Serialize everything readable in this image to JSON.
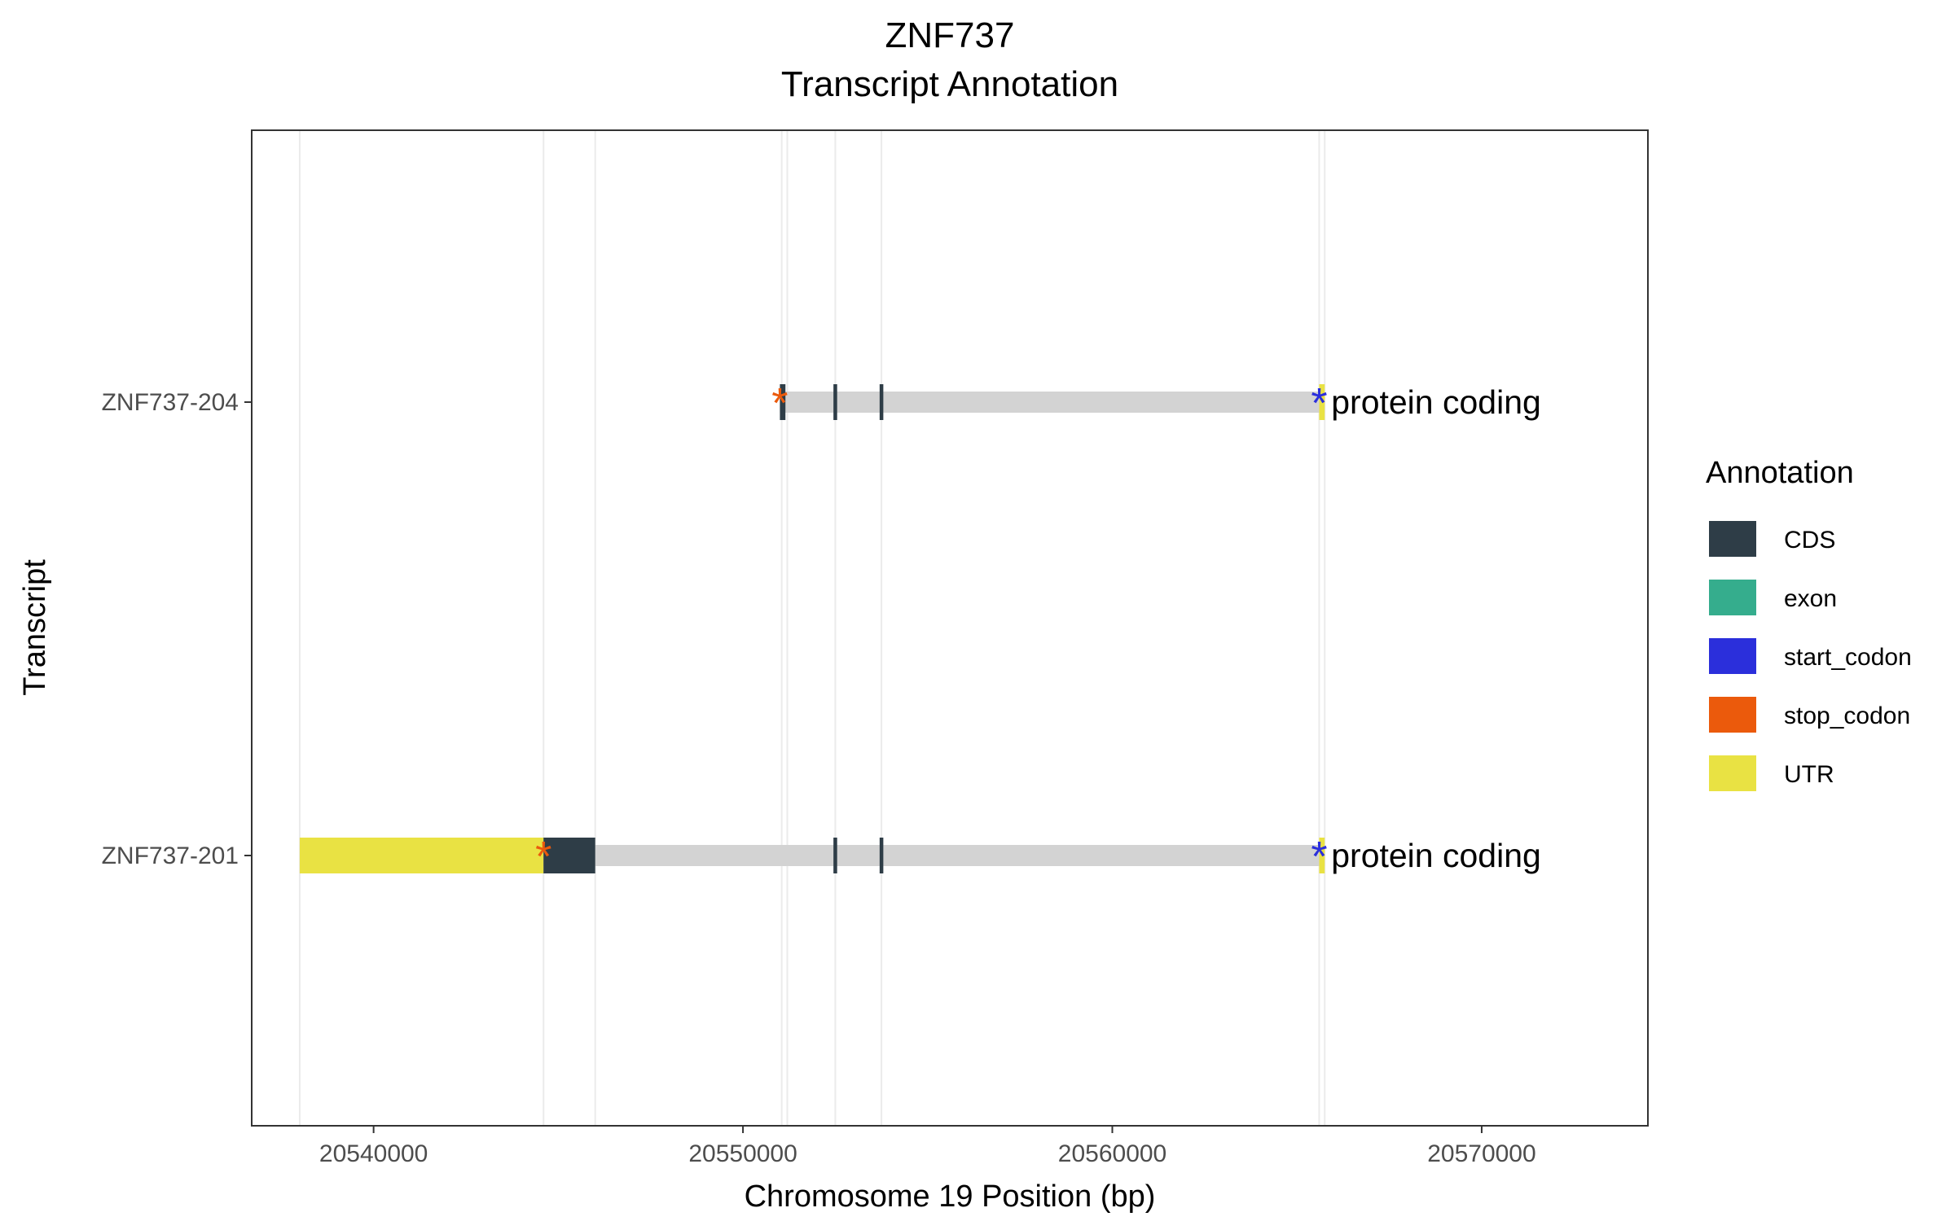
{
  "chart_data": {
    "type": "gene-track",
    "title_line1": "ZNF737",
    "title_line2": "Transcript Annotation",
    "xlabel": "Chromosome 19 Position (bp)",
    "ylabel": "Transcript",
    "xlim": [
      20536700,
      20574500
    ],
    "x_ticks": [
      20540000,
      20550000,
      20560000,
      20570000
    ],
    "x_tick_labels": [
      "20540000",
      "20550000",
      "20560000",
      "20570000"
    ],
    "grid_x": [
      20538000,
      20544600,
      20546000,
      20551050,
      20551200,
      20552500,
      20553750,
      20565600,
      20565750
    ],
    "legend": {
      "title": "Annotation",
      "position": "right",
      "items": [
        {
          "label": "CDS",
          "color": "#2e3d47"
        },
        {
          "label": "exon",
          "color": "#35ad8d"
        },
        {
          "label": "start_codon",
          "color": "#2b2fdb"
        },
        {
          "label": "stop_codon",
          "color": "#eb5a0c"
        },
        {
          "label": "UTR",
          "color": "#e9e243"
        }
      ]
    },
    "intron_color": "#d3d3d3",
    "transcripts": [
      {
        "name": "ZNF737-204",
        "biotype": "protein coding",
        "span": [
          20551000,
          20565750
        ],
        "features": [
          {
            "type": "CDS",
            "start": 20551000,
            "end": 20551150
          },
          {
            "type": "CDS",
            "start": 20552450,
            "end": 20552550
          },
          {
            "type": "CDS",
            "start": 20553700,
            "end": 20553800
          },
          {
            "type": "UTR",
            "start": 20565600,
            "end": 20565750
          }
        ],
        "stop_codon": 20551000,
        "start_codon": 20565600
      },
      {
        "name": "ZNF737-201",
        "biotype": "protein coding",
        "span": [
          20538000,
          20565750
        ],
        "features": [
          {
            "type": "UTR",
            "start": 20538000,
            "end": 20544600
          },
          {
            "type": "CDS",
            "start": 20544600,
            "end": 20546000
          },
          {
            "type": "CDS",
            "start": 20552450,
            "end": 20552550
          },
          {
            "type": "CDS",
            "start": 20553700,
            "end": 20553800
          },
          {
            "type": "UTR",
            "start": 20565600,
            "end": 20565750
          }
        ],
        "stop_codon": 20544600,
        "start_codon": 20565600
      }
    ]
  }
}
